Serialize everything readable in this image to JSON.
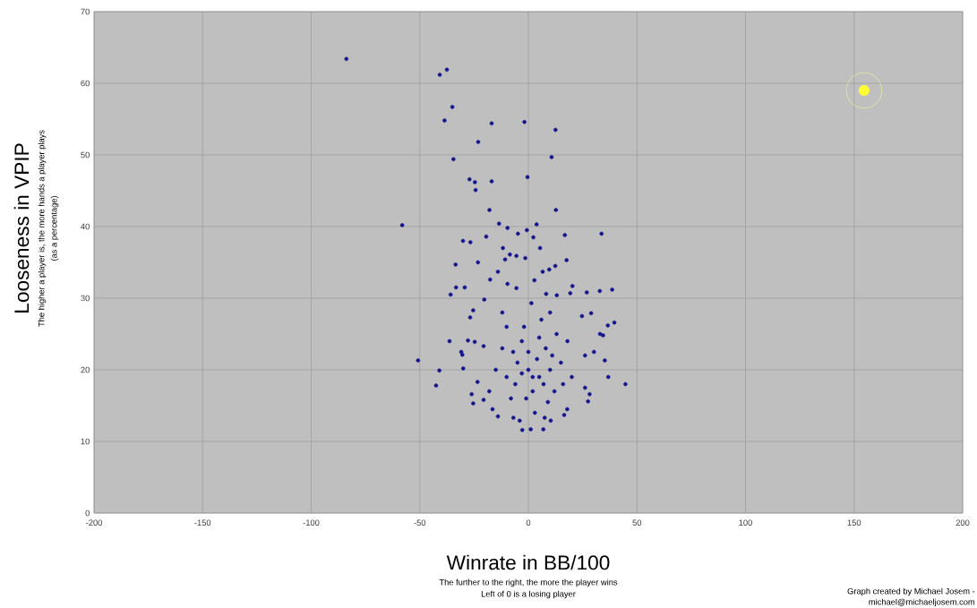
{
  "chart_data": {
    "type": "scatter",
    "xlabel": "Winrate in BB/100",
    "ylabel": "Looseness in VPIP",
    "annotations": [
      "The further to the right, the more the player wins",
      "Left of 0 is a losing player",
      "The higher a player is, the more hands a player plays",
      "(as a percentage)",
      "Graph created by Michael Josem -",
      "michael@michaeljosem.com"
    ],
    "xlim": [
      -200,
      200
    ],
    "ylim": [
      0,
      70
    ],
    "xticks": [
      -200,
      -150,
      -100,
      -50,
      0,
      50,
      100,
      150,
      200
    ],
    "yticks": [
      0,
      10,
      20,
      30,
      40,
      50,
      60,
      70
    ],
    "grid": true,
    "marker": "circle",
    "series": [
      {
        "color": "#14148c",
        "x": [
          -83.8,
          -40.8,
          -37.5,
          -35.0,
          -38.6,
          -16.9,
          -1.8,
          12.5,
          -23.1,
          -34.5,
          10.7,
          -0.4,
          -27.1,
          -24.6,
          -24.3,
          -16.9,
          -17.9,
          12.7,
          -58.1,
          -13.5,
          3.8,
          -9.6,
          -0.7,
          33.7,
          16.8,
          -4.8,
          -30.1,
          -26.7,
          -19.4,
          2.3,
          -33.5,
          17.6,
          -33.3,
          -29.3,
          -35.8,
          26.9,
          32.9,
          38.6,
          39.6,
          36.6,
          -36.3,
          -50.8,
          -41.0,
          -42.5,
          44.7,
          35.2,
          36.8,
          6.9,
          1.1,
          -4.0,
          -6.9,
          -25.4,
          -30.4,
          -30.0,
          -20.3,
          -23.2,
          -11.7,
          -10.7,
          -8.5,
          -5.5,
          -1.4,
          5.4,
          6.6,
          9.6,
          12.4,
          20.3,
          2.8,
          -17.6,
          -14.0,
          -9.6,
          -5.5,
          8.2,
          13.1,
          19.3,
          1.4,
          -25.4,
          -26.8,
          28.9,
          24.7,
          33.0,
          34.4,
          -27.8,
          -24.7,
          -30.9,
          -20.6,
          26.1,
          30.2,
          -23.4,
          -26.1,
          26.1,
          28.2,
          27.5,
          -20.6,
          -16.5,
          17.9,
          16.5,
          10.3,
          7.5,
          -2.8,
          0,
          5,
          -5,
          10,
          -10,
          8,
          -3,
          2,
          -8,
          12,
          15,
          -12,
          3,
          -2,
          6,
          -15,
          18,
          20,
          -18,
          0,
          4,
          -6,
          9,
          -10,
          13,
          -14,
          2,
          7,
          -3,
          11,
          -7,
          16,
          -1,
          5,
          -12,
          10
        ],
        "values": [
          63.4,
          61.2,
          61.9,
          56.7,
          54.8,
          54.4,
          54.6,
          53.5,
          51.8,
          49.4,
          49.7,
          46.9,
          46.6,
          46.2,
          45.1,
          46.3,
          42.3,
          42.3,
          40.2,
          40.4,
          40.3,
          39.8,
          39.5,
          39.0,
          38.8,
          39.0,
          38.0,
          37.8,
          38.6,
          38.5,
          34.7,
          35.3,
          31.5,
          31.5,
          30.5,
          30.8,
          31.0,
          31.2,
          26.6,
          26.2,
          24.0,
          21.3,
          19.9,
          17.8,
          18.0,
          21.3,
          19.0,
          11.7,
          11.7,
          12.9,
          13.3,
          15.3,
          22.1,
          20.2,
          29.8,
          35.0,
          37.0,
          35.4,
          36.1,
          35.9,
          35.6,
          37.0,
          33.7,
          34.0,
          34.5,
          31.7,
          32.5,
          32.6,
          33.7,
          32.0,
          31.4,
          30.6,
          30.4,
          30.7,
          29.3,
          28.3,
          27.3,
          27.9,
          27.5,
          25.0,
          24.8,
          24.1,
          23.9,
          22.5,
          23.3,
          22.0,
          22.5,
          18.3,
          16.6,
          17.5,
          16.6,
          15.6,
          15.8,
          14.5,
          14.5,
          13.7,
          12.9,
          13.3,
          11.6,
          20,
          19,
          21,
          20,
          19,
          23,
          24,
          17,
          16,
          17,
          21,
          23,
          14,
          26,
          27,
          20,
          24,
          19,
          17,
          22.5,
          21.5,
          18,
          15.5,
          26,
          25,
          13.5,
          19,
          18,
          19.5,
          22,
          22.5,
          18,
          16,
          24.5,
          28,
          28
        ]
      },
      {
        "color": "#ffff33",
        "x": [
          154.6
        ],
        "values": [
          59
        ]
      }
    ]
  }
}
